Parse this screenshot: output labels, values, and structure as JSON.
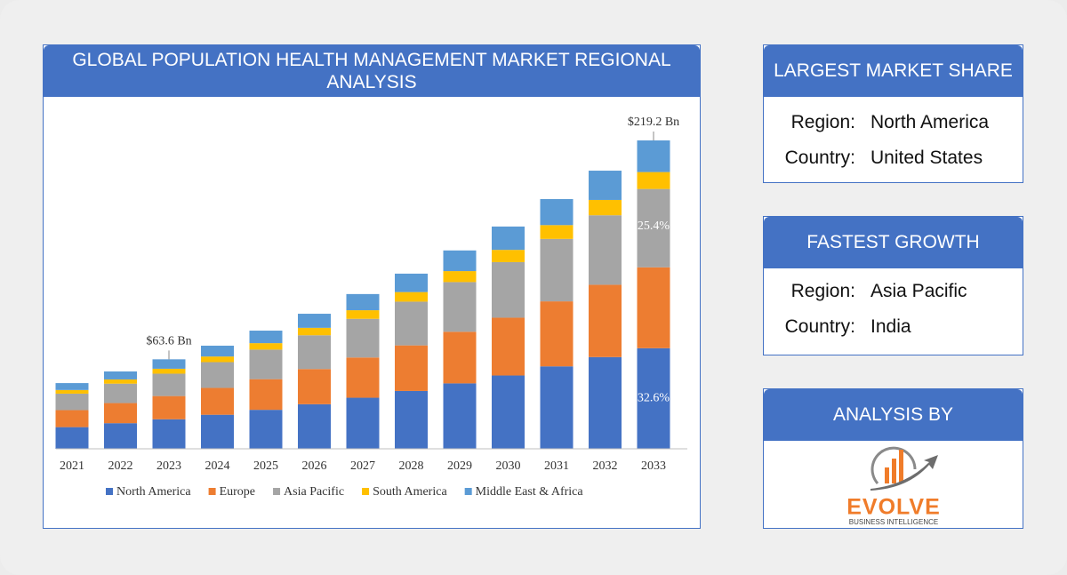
{
  "chart_data": {
    "type": "bar",
    "stacked": true,
    "title": "GLOBAL POPULATION HEALTH MANAGEMENT MARKET REGIONAL ANALYSIS",
    "categories": [
      "2021",
      "2022",
      "2023",
      "2024",
      "2025",
      "2026",
      "2027",
      "2028",
      "2029",
      "2030",
      "2031",
      "2032",
      "2033"
    ],
    "series": [
      {
        "name": "North America",
        "color": "#4472c4",
        "values": [
          15.4,
          18.2,
          21.0,
          24.2,
          27.7,
          31.7,
          36.3,
          41.1,
          46.5,
          52.1,
          58.6,
          65.2,
          71.5
        ]
      },
      {
        "name": "Europe",
        "color": "#ed7d31",
        "values": [
          12.1,
          14.3,
          16.5,
          19.1,
          21.8,
          25.0,
          28.6,
          32.4,
          36.7,
          41.1,
          46.2,
          51.4,
          57.5
        ]
      },
      {
        "name": "Asia Pacific",
        "color": "#a5a5a5",
        "values": [
          11.7,
          13.8,
          15.9,
          18.3,
          21.0,
          24.0,
          27.5,
          31.1,
          35.3,
          39.5,
          44.4,
          49.4,
          55.7
        ]
      },
      {
        "name": "South America",
        "color": "#ffc000",
        "values": [
          2.6,
          3.0,
          3.5,
          4.0,
          4.6,
          5.3,
          6.1,
          6.8,
          7.8,
          8.7,
          9.8,
          10.9,
          12.0
        ]
      },
      {
        "name": "Middle East & Africa",
        "color": "#5b9bd5",
        "values": [
          4.9,
          5.7,
          6.7,
          7.7,
          8.9,
          10.0,
          11.5,
          13.1,
          14.7,
          16.6,
          18.5,
          20.8,
          22.5
        ]
      }
    ],
    "annotations": [
      "$63.6 Bn",
      "$219.2 Bn",
      "32.6%",
      "25.4%"
    ]
  },
  "panels": [
    {
      "title": "LARGEST MARKET SHARE",
      "rows": [
        [
          "Region:",
          "North America"
        ],
        [
          "Country:",
          "United States"
        ]
      ]
    },
    {
      "title": "FASTEST GROWTH",
      "rows": [
        [
          "Region:",
          "Asia Pacific"
        ],
        [
          "Country:",
          "India"
        ]
      ]
    },
    {
      "title": "ANALYSIS BY"
    }
  ],
  "logo": {
    "name": "EVOLVE",
    "tagline": "BUSINESS INTELLIGENCE"
  }
}
